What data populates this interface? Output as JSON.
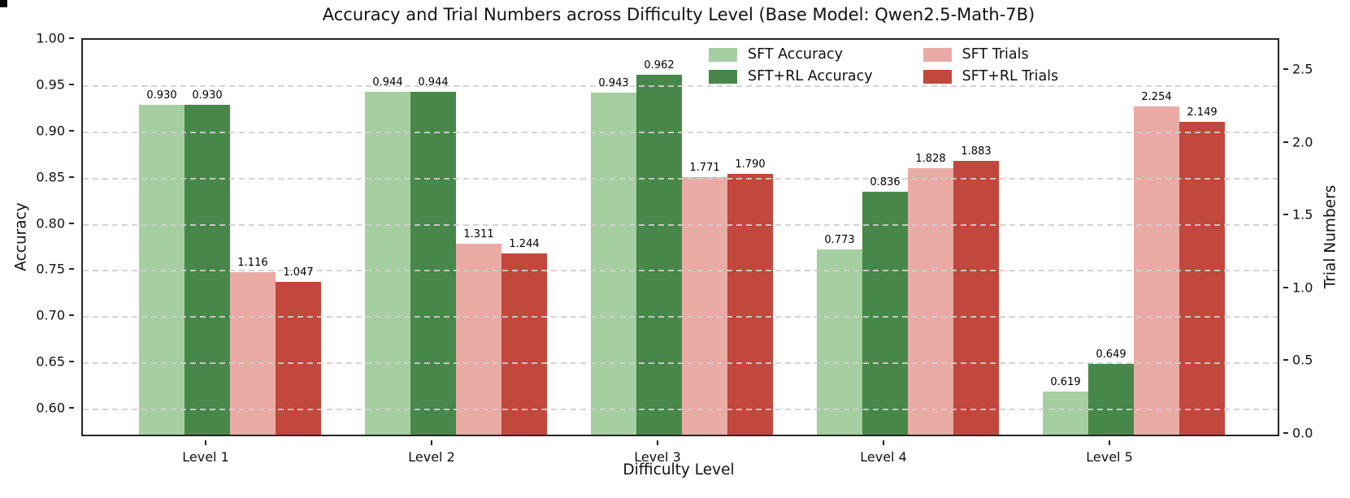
{
  "title": "Accuracy and Trial Numbers across Difficulty Level (Base Model: Qwen2.5-Math-7B)",
  "chart_data": {
    "type": "bar",
    "categories": [
      "Level 1",
      "Level 2",
      "Level 3",
      "Level 4",
      "Level 5"
    ],
    "series": [
      {
        "name": "SFT Accuracy",
        "axis": "left",
        "color": "#a6cfa1",
        "values": [
          0.93,
          0.944,
          0.943,
          0.773,
          0.619
        ]
      },
      {
        "name": "SFT+RL Accuracy",
        "axis": "left",
        "color": "#478749",
        "values": [
          0.93,
          0.944,
          0.962,
          0.836,
          0.649
        ]
      },
      {
        "name": "SFT Trials",
        "axis": "right",
        "color": "#e9aba4",
        "values": [
          1.116,
          1.311,
          1.771,
          1.828,
          2.254
        ]
      },
      {
        "name": "SFT+RL Trials",
        "axis": "right",
        "color": "#c2473c",
        "values": [
          1.047,
          1.244,
          1.79,
          1.883,
          2.149
        ]
      }
    ],
    "title": "Accuracy and Trial Numbers across Difficulty Level (Base Model: Qwen2.5-Math-7B)",
    "xlabel": "Difficulty Level",
    "ylabel_left": "Accuracy",
    "ylabel_right": "Trial Numbers",
    "ylim_left": [
      0.5728,
      1.0
    ],
    "ylim_right": [
      0,
      2.712
    ],
    "yticks_left": [
      1.0,
      0.95,
      0.9,
      0.85,
      0.8,
      0.75,
      0.7,
      0.65,
      0.6
    ],
    "yticks_right": [
      0.0,
      0.5,
      1.0,
      1.5,
      2.0,
      2.5
    ],
    "ytick_labels_left": [
      "1.00",
      "0.95",
      "0.90",
      "0.85",
      "0.80",
      "0.75",
      "0.70",
      "0.65",
      "0.60"
    ],
    "ytick_labels_right": [
      "0.0",
      "0.5",
      "1.0",
      "1.5",
      "2.0",
      "2.5"
    ],
    "grid": "horizontal dashed gridlines at left-axis ticks 0.95 to 0.60, drawn above bars",
    "grid_color": "#cfcfcf",
    "legend_position": "upper right inside plot, 2 columns, no frame",
    "value_labels": "each bar labeled with value to 3 decimals"
  },
  "colors": {
    "sft_accuracy": "#a6cfa1",
    "sft_rl_accuracy": "#478749",
    "sft_trials": "#e9aba4",
    "sft_rl_trials": "#c2473c",
    "spine": "#262626",
    "grid": "#cfcfcf",
    "text": "#111111",
    "background": "#ffffff"
  }
}
